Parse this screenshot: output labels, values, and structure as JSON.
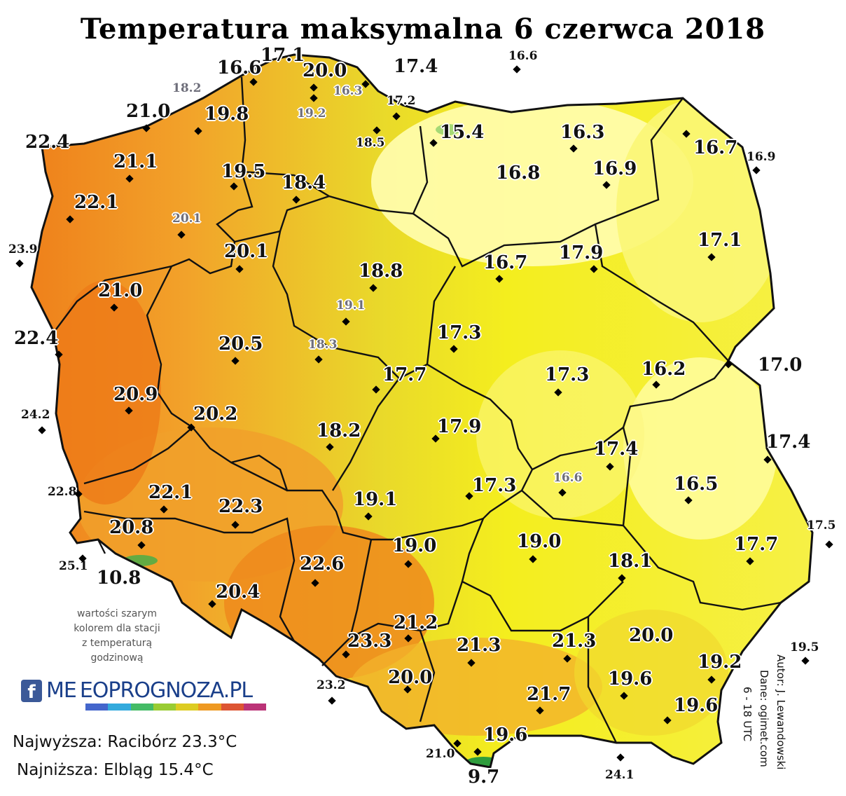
{
  "title": "Temperatura maksymalna 6 czerwca 2018",
  "note": [
    "wartości szarym",
    "kolorem dla stacji",
    "z temperaturą",
    "godzinową"
  ],
  "logo": {
    "brand": "MeteoPrognoza.pl",
    "text": "ME EOPROGNOZA.PL",
    "social_icon": "facebook-icon"
  },
  "summary": {
    "highest": "Najwyższa: Racibórz 23.3°C",
    "lowest": "Najniższa: Elbląg 15.4°C"
  },
  "credits": {
    "author": "Autor: J. Lewandowski",
    "data": "Dane: ogimet.com",
    "hours": "6 - 18 UTC"
  },
  "colors": {
    "cool": "#fffcaa",
    "mild": "#f4ee1e",
    "warm": "#f2b22a",
    "hot": "#ee7a18",
    "mountain": "#2e9c3c",
    "border": "#111111"
  },
  "stations": [
    {
      "v": "17.1",
      "s": "big"
    },
    {
      "v": "16.6",
      "s": "big"
    },
    {
      "v": "20.0",
      "s": "big"
    },
    {
      "v": "17.4",
      "s": "big"
    },
    {
      "v": "16.6",
      "s": "small"
    },
    {
      "v": "18.2",
      "s": "gray"
    },
    {
      "v": "16.3",
      "s": "gray"
    },
    {
      "v": "17.2",
      "s": "small"
    },
    {
      "v": "19.2",
      "s": "gray"
    },
    {
      "v": "21.0",
      "s": "big"
    },
    {
      "v": "19.8",
      "s": "big"
    },
    {
      "v": "18.5",
      "s": "small"
    },
    {
      "v": "15.4",
      "s": "big"
    },
    {
      "v": "16.3",
      "s": "big"
    },
    {
      "v": "16.7",
      "s": "big"
    },
    {
      "v": "22.4",
      "s": "big"
    },
    {
      "v": "21.1",
      "s": "big"
    },
    {
      "v": "19.5",
      "s": "big"
    },
    {
      "v": "16.8",
      "s": "big"
    },
    {
      "v": "16.9",
      "s": "big"
    },
    {
      "v": "16.9",
      "s": "small"
    },
    {
      "v": "18.4",
      "s": "big"
    },
    {
      "v": "22.1",
      "s": "big"
    },
    {
      "v": "20.1",
      "s": "gray"
    },
    {
      "v": "20.1",
      "s": "big"
    },
    {
      "v": "17.1",
      "s": "big"
    },
    {
      "v": "23.9",
      "s": "small"
    },
    {
      "v": "18.8",
      "s": "big"
    },
    {
      "v": "16.7",
      "s": "big"
    },
    {
      "v": "17.9",
      "s": "big"
    },
    {
      "v": "21.0",
      "s": "big"
    },
    {
      "v": "19.1",
      "s": "gray"
    },
    {
      "v": "22.4",
      "s": "big"
    },
    {
      "v": "17.3",
      "s": "big"
    },
    {
      "v": "20.5",
      "s": "big"
    },
    {
      "v": "18.3",
      "s": "gray"
    },
    {
      "v": "17.0",
      "s": "big"
    },
    {
      "v": "17.7",
      "s": "big"
    },
    {
      "v": "17.3",
      "s": "big"
    },
    {
      "v": "16.2",
      "s": "big"
    },
    {
      "v": "20.9",
      "s": "big"
    },
    {
      "v": "24.2",
      "s": "small"
    },
    {
      "v": "20.2",
      "s": "big"
    },
    {
      "v": "17.9",
      "s": "big"
    },
    {
      "v": "18.2",
      "s": "big"
    },
    {
      "v": "17.4",
      "s": "big"
    },
    {
      "v": "17.4",
      "s": "big"
    },
    {
      "v": "16.6",
      "s": "gray"
    },
    {
      "v": "16.5",
      "s": "big"
    },
    {
      "v": "22.8",
      "s": "small"
    },
    {
      "v": "22.1",
      "s": "big"
    },
    {
      "v": "17.3",
      "s": "big"
    },
    {
      "v": "22.3",
      "s": "big"
    },
    {
      "v": "19.1",
      "s": "big"
    },
    {
      "v": "20.8",
      "s": "big"
    },
    {
      "v": "17.5",
      "s": "small"
    },
    {
      "v": "19.0",
      "s": "big"
    },
    {
      "v": "19.0",
      "s": "big"
    },
    {
      "v": "17.7",
      "s": "big"
    },
    {
      "v": "25.1",
      "s": "small"
    },
    {
      "v": "10.8",
      "s": "big"
    },
    {
      "v": "22.6",
      "s": "big"
    },
    {
      "v": "18.1",
      "s": "big"
    },
    {
      "v": "20.4",
      "s": "big"
    },
    {
      "v": "21.2",
      "s": "big"
    },
    {
      "v": "23.3",
      "s": "big"
    },
    {
      "v": "21.3",
      "s": "big"
    },
    {
      "v": "21.3",
      "s": "big"
    },
    {
      "v": "20.0",
      "s": "big"
    },
    {
      "v": "19.5",
      "s": "small"
    },
    {
      "v": "19.2",
      "s": "big"
    },
    {
      "v": "23.2",
      "s": "small"
    },
    {
      "v": "20.0",
      "s": "big"
    },
    {
      "v": "19.6",
      "s": "big"
    },
    {
      "v": "21.7",
      "s": "big"
    },
    {
      "v": "19.6",
      "s": "big"
    },
    {
      "v": "19.6",
      "s": "big"
    },
    {
      "v": "21.0",
      "s": "small"
    },
    {
      "v": "9.7",
      "s": "big"
    },
    {
      "v": "24.1",
      "s": "small"
    }
  ]
}
